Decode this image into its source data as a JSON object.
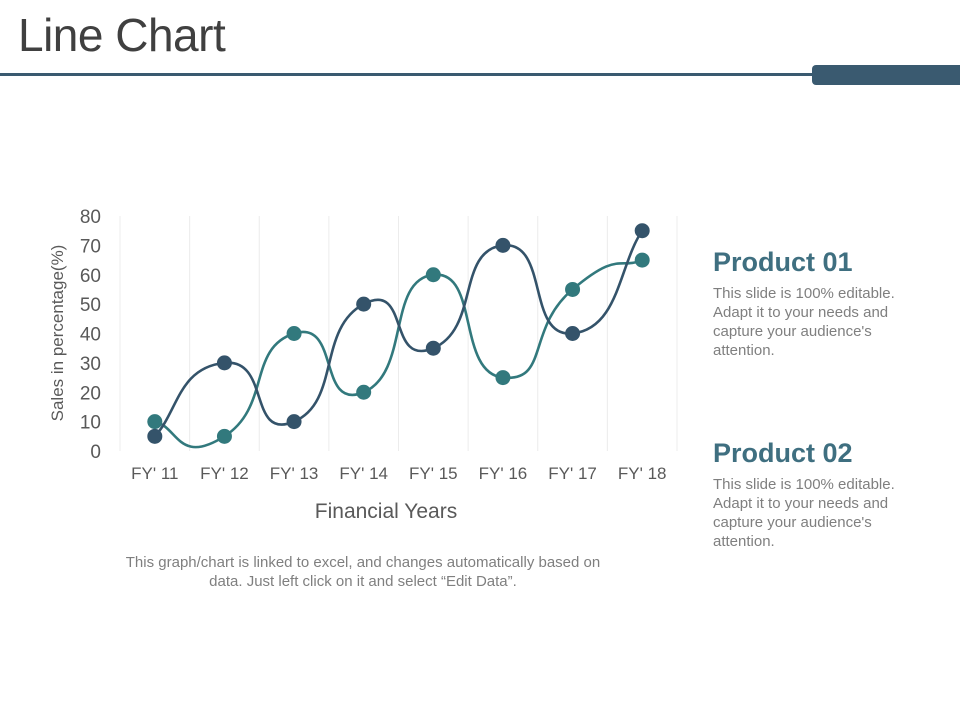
{
  "slide": {
    "title": "Line Chart",
    "note": "This graph/chart is linked to excel, and changes automatically based on data. Just left click on it and select “Edit Data”."
  },
  "products": [
    {
      "title": "Product 01",
      "description": "This slide is 100% editable. Adapt it to your needs and capture your audience's attention."
    },
    {
      "title": "Product 02",
      "description": "This slide is 100% editable. Adapt it to your needs and capture your audience's attention."
    }
  ],
  "colors": {
    "accent": "#3a5a70",
    "series_dark": "#34536a",
    "series_teal": "#32797d",
    "product_title": "#3f6f80"
  },
  "chart_data": {
    "type": "line",
    "title": "",
    "xlabel": "Financial Years",
    "ylabel": "Sales in percentage(%)",
    "categories": [
      "FY' 11",
      "FY' 12",
      "FY' 13",
      "FY' 14",
      "FY' 15",
      "FY' 16",
      "FY' 17",
      "FY' 18"
    ],
    "ylim": [
      0,
      80
    ],
    "yticks": [
      0,
      10,
      20,
      30,
      40,
      50,
      60,
      70,
      80
    ],
    "smooth": true,
    "grid": "vertical",
    "series": [
      {
        "values": [
          5,
          30,
          10,
          50,
          35,
          70,
          40,
          75
        ],
        "color": "#34536a"
      },
      {
        "values": [
          10,
          5,
          40,
          20,
          60,
          25,
          55,
          65
        ],
        "color": "#32797d"
      }
    ]
  }
}
